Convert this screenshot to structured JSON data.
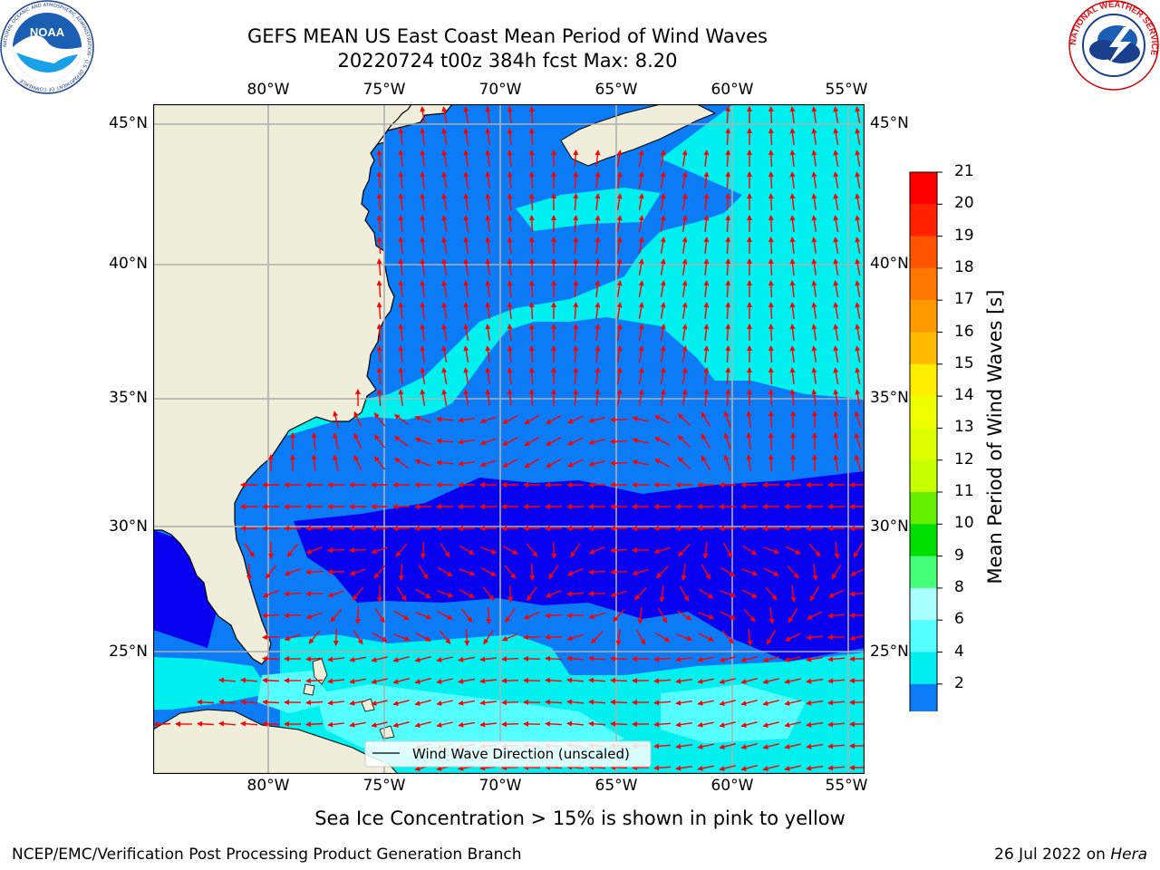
{
  "title": {
    "line1": "GEFS MEAN US East Coast Mean Period of Wind Waves",
    "line2": "20220724 t00z 384h fcst   Max: 8.20"
  },
  "lon_ticks": [
    "80°W",
    "75°W",
    "70°W",
    "65°W",
    "60°W",
    "55°W"
  ],
  "lat_ticks": [
    "45°N",
    "40°N",
    "35°N",
    "30°N",
    "25°N"
  ],
  "map": {
    "legend_label": "Wind Wave Direction (unscaled)",
    "colors": {
      "land": "#efeedb",
      "ocean_2_4": "#0b7cf5",
      "ocean_lt2": "#0a00f0",
      "ocean_4_6": "#00f0f0",
      "ocean_6_8": "#55ffff",
      "arrows": "#ff0000",
      "grid": "#b0b0b0"
    }
  },
  "colorbar": {
    "label": "Mean Period of Wind Waves [s]",
    "ticks": [
      "21",
      "20",
      "19",
      "18",
      "17",
      "16",
      "15",
      "14",
      "13",
      "12",
      "11",
      "10",
      "9",
      "8",
      "6",
      "4",
      "2"
    ],
    "colors": [
      "#ff0000",
      "#ff2200",
      "#ff5500",
      "#ff7700",
      "#ff9900",
      "#ffbb00",
      "#ffee00",
      "#eeff00",
      "#ddff00",
      "#c8ff00",
      "#66ee00",
      "#00dd00",
      "#44ff77",
      "#aaffff",
      "#55ffff",
      "#00f0f0",
      "#0b7cf5"
    ],
    "extend_color": "#0a00f0"
  },
  "subtitle": "Sea Ice Concentration > 15% is shown in pink to yellow",
  "footer_left": "NCEP/EMC/Verification Post Processing Product Generation Branch",
  "footer_date": "26 Jul 2022 on ",
  "footer_host": "Hera",
  "logos": {
    "noaa_text": "NOAA",
    "noaa_ring": "NATIONAL OCEANIC AND ATMOSPHERIC ADMINISTRATION · U.S. DEPARTMENT OF COMMERCE",
    "nws_ring": "NATIONAL WEATHER SERVICE"
  }
}
